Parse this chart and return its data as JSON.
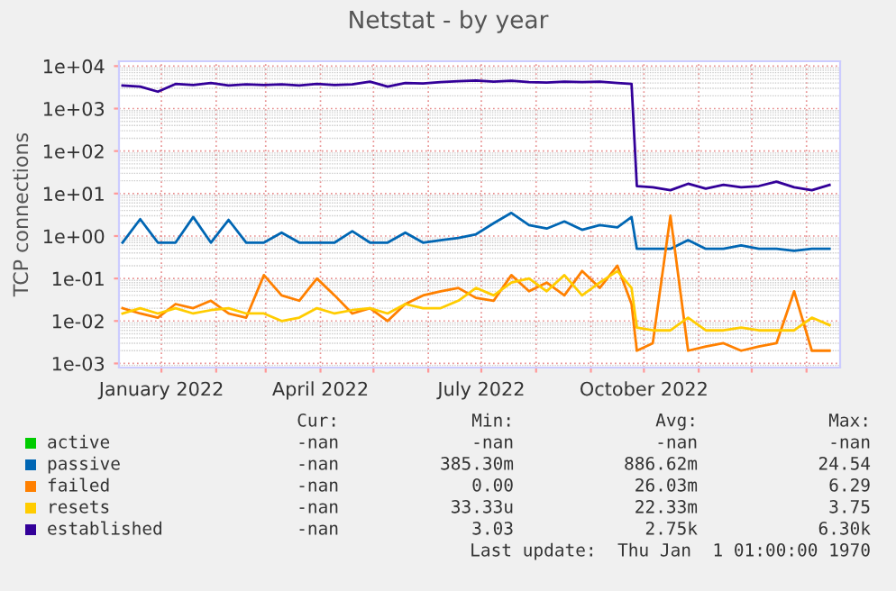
{
  "chart_data": {
    "type": "line",
    "title": "Netstat - by year",
    "ylabel": "TCP connections",
    "x": [
      "2021-12-10",
      "2021-12-20",
      "2021-12-30",
      "2022-01-09",
      "2022-01-19",
      "2022-01-29",
      "2022-02-08",
      "2022-02-18",
      "2022-02-28",
      "2022-03-10",
      "2022-03-20",
      "2022-03-30",
      "2022-04-09",
      "2022-04-19",
      "2022-04-29",
      "2022-05-09",
      "2022-05-19",
      "2022-05-29",
      "2022-06-08",
      "2022-06-18",
      "2022-06-28",
      "2022-07-08",
      "2022-07-18",
      "2022-07-28",
      "2022-08-07",
      "2022-08-17",
      "2022-08-27",
      "2022-09-06",
      "2022-09-16",
      "2022-09-24",
      "2022-09-27",
      "2022-10-06",
      "2022-10-16",
      "2022-10-26",
      "2022-11-05",
      "2022-11-15",
      "2022-11-25",
      "2022-12-05",
      "2022-12-15",
      "2022-12-25",
      "2023-01-04",
      "2023-01-14"
    ],
    "series": [
      {
        "name": "active",
        "color": "#00cc00",
        "values": [
          null,
          null,
          null,
          null,
          null,
          null,
          null,
          null,
          null,
          null,
          null,
          null,
          null,
          null,
          null,
          null,
          null,
          null,
          null,
          null,
          null,
          null,
          null,
          null,
          null,
          null,
          null,
          null,
          null,
          null,
          null,
          null,
          null,
          null,
          null,
          null,
          null,
          null,
          null,
          null,
          null,
          null
        ]
      },
      {
        "name": "passive",
        "color": "#0066b3",
        "values": [
          0.7,
          2.5,
          0.7,
          0.7,
          2.8,
          0.7,
          2.4,
          0.7,
          0.7,
          1.2,
          0.7,
          0.7,
          0.7,
          1.3,
          0.7,
          0.7,
          1.2,
          0.7,
          0.8,
          0.9,
          1.1,
          2.0,
          3.5,
          1.8,
          1.5,
          2.2,
          1.4,
          1.8,
          1.6,
          2.8,
          0.5,
          0.5,
          0.5,
          0.8,
          0.5,
          0.5,
          0.6,
          0.5,
          0.5,
          0.45,
          0.5,
          0.5
        ]
      },
      {
        "name": "failed",
        "color": "#ff8000",
        "values": [
          0.02,
          0.015,
          0.012,
          0.025,
          0.02,
          0.03,
          0.015,
          0.012,
          0.12,
          0.04,
          0.03,
          0.1,
          0.04,
          0.015,
          0.02,
          0.01,
          0.025,
          0.04,
          0.05,
          0.06,
          0.035,
          0.03,
          0.12,
          0.05,
          0.08,
          0.04,
          0.15,
          0.06,
          0.2,
          0.025,
          0.002,
          0.003,
          3.0,
          0.002,
          0.0025,
          0.003,
          0.002,
          0.0025,
          0.003,
          0.05,
          0.002,
          0.002
        ]
      },
      {
        "name": "resets",
        "color": "#ffcc00",
        "values": [
          0.015,
          0.02,
          0.015,
          0.02,
          0.015,
          0.018,
          0.02,
          0.015,
          0.015,
          0.01,
          0.012,
          0.02,
          0.015,
          0.018,
          0.02,
          0.015,
          0.025,
          0.02,
          0.02,
          0.03,
          0.06,
          0.04,
          0.08,
          0.1,
          0.05,
          0.12,
          0.04,
          0.08,
          0.15,
          0.06,
          0.007,
          0.006,
          0.006,
          0.012,
          0.006,
          0.006,
          0.007,
          0.006,
          0.006,
          0.006,
          0.012,
          0.008
        ]
      },
      {
        "name": "established",
        "color": "#330099",
        "values": [
          3500,
          3300,
          2500,
          3800,
          3600,
          4000,
          3500,
          3700,
          3600,
          3700,
          3500,
          3800,
          3600,
          3700,
          4300,
          3300,
          4000,
          3900,
          4200,
          4400,
          4600,
          4300,
          4500,
          4200,
          4100,
          4300,
          4200,
          4300,
          4000,
          3800,
          15,
          14,
          12,
          17,
          13,
          16,
          14,
          15,
          19,
          14,
          12,
          16
        ]
      }
    ],
    "log": "y",
    "xlim": [
      "2021-12-08",
      "2023-01-20"
    ],
    "xticks": [
      {
        "value": "2022-01-01",
        "label": "January 2022"
      },
      {
        "value": "2022-02-01",
        "label": null
      },
      {
        "value": "2022-03-01",
        "label": null
      },
      {
        "value": "2022-04-01",
        "label": "April 2022"
      },
      {
        "value": "2022-05-01",
        "label": null
      },
      {
        "value": "2022-06-01",
        "label": null
      },
      {
        "value": "2022-07-01",
        "label": "July 2022"
      },
      {
        "value": "2022-08-01",
        "label": null
      },
      {
        "value": "2022-09-01",
        "label": null
      },
      {
        "value": "2022-10-01",
        "label": "October 2022"
      },
      {
        "value": "2022-11-01",
        "label": null
      },
      {
        "value": "2022-12-01",
        "label": null
      },
      {
        "value": "2023-01-01",
        "label": null
      }
    ],
    "ylim": [
      0.0008,
      13000
    ],
    "yticks": [
      {
        "value": 0.001,
        "label": "1e-03"
      },
      {
        "value": 0.01,
        "label": "1e-02"
      },
      {
        "value": 0.1,
        "label": "1e-01"
      },
      {
        "value": 1,
        "label": "1e+00"
      },
      {
        "value": 10,
        "label": "1e+01"
      },
      {
        "value": 100,
        "label": "1e+02"
      },
      {
        "value": 1000,
        "label": "1e+03"
      },
      {
        "value": 10000,
        "label": "1e+04"
      }
    ],
    "grid": true,
    "legend": "bottom",
    "annotations": [
      "Cur:",
      "Min:",
      "Avg:",
      "Max:",
      "-nan",
      "-nan",
      "-nan",
      "-nan",
      "-nan",
      "385.30m",
      "886.62m",
      "24.54",
      "-nan",
      "0.00",
      "26.03m",
      "6.29",
      "-nan",
      "33.33u",
      "22.33m",
      "3.75",
      "-nan",
      "3.03",
      "2.75k",
      "6.30k",
      "Last update:  Thu Jan  1 01:00:00 1970"
    ]
  }
}
